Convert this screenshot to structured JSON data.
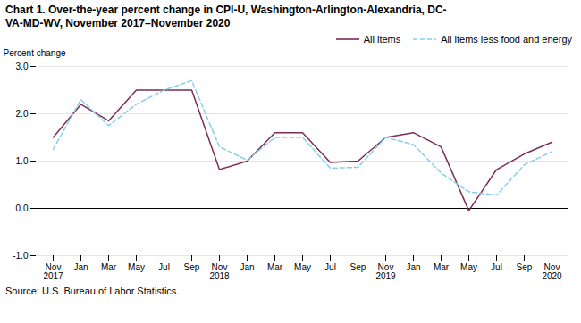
{
  "chart_data": {
    "type": "line",
    "title": "Chart 1. Over-the-year percent change in CPI-U, Washington-Arlington-Alexandria, DC-\nVA-MD-WV, November 2017–November 2020",
    "ylabel": "Percent change",
    "source": "Source: U.S. Bureau of Labor Statistics.",
    "categories": [
      "Nov\n2017",
      "Jan",
      "Mar",
      "May",
      "Jul",
      "Sep",
      "Nov\n2018",
      "Jan",
      "Mar",
      "May",
      "Jul",
      "Sep",
      "Nov\n2019",
      "Jan",
      "Mar",
      "May",
      "Jul",
      "Sep",
      "Nov\n2020"
    ],
    "series": [
      {
        "name": "All items",
        "color": "#7B2D52",
        "line_style": "solid",
        "values": [
          1.5,
          2.2,
          1.85,
          2.5,
          2.5,
          2.5,
          0.82,
          1.0,
          1.6,
          1.6,
          0.97,
          1.0,
          1.5,
          1.6,
          1.3,
          -0.05,
          0.82,
          1.15,
          1.4
        ]
      },
      {
        "name": "All items less food and energy",
        "color": "#87CEEB",
        "line_style": "dashed",
        "values": [
          1.25,
          2.3,
          1.75,
          2.2,
          2.5,
          2.7,
          1.3,
          1.02,
          1.5,
          1.5,
          0.85,
          0.87,
          1.5,
          1.35,
          0.75,
          0.35,
          0.28,
          0.92,
          1.2
        ]
      }
    ],
    "ylim": [
      -1.0,
      3.0
    ],
    "yticks": [
      {
        "value": -1.0,
        "label": "-1.0"
      },
      {
        "value": 0.0,
        "label": "0.0"
      },
      {
        "value": 1.0,
        "label": "1.0"
      },
      {
        "value": 2.0,
        "label": "2.0"
      },
      {
        "value": 3.0,
        "label": "3.0"
      }
    ],
    "grid": true,
    "legend": "upper right"
  }
}
